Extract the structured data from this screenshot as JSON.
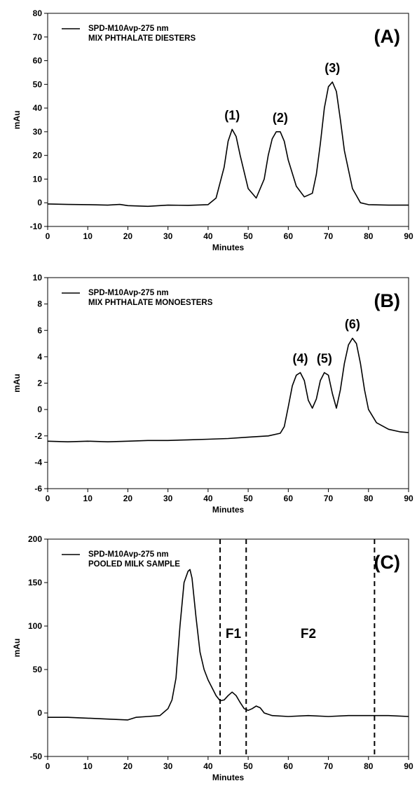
{
  "chart_data": [
    {
      "type": "line",
      "panel_label": "(A)",
      "legend": [
        "SPD-M10Avp-275 nm",
        "MIX PHTHALATE DIESTERS"
      ],
      "xlabel": "Minutes",
      "ylabel": "mAu",
      "xlim": [
        0,
        90
      ],
      "ylim": [
        -10,
        80
      ],
      "x_ticks": [
        0,
        10,
        20,
        30,
        40,
        50,
        60,
        70,
        80,
        90
      ],
      "y_ticks": [
        -10,
        0,
        10,
        20,
        30,
        40,
        50,
        60,
        70,
        80
      ],
      "grid": false,
      "legend_position": "top-left",
      "series": [
        {
          "x": [
            0,
            5,
            10,
            15,
            18,
            20,
            25,
            30,
            35,
            40,
            42,
            44,
            45,
            46,
            47,
            48,
            50,
            52,
            54,
            55,
            56,
            57,
            58,
            59,
            60,
            62,
            64,
            66,
            67,
            68,
            69,
            70,
            71,
            72,
            73,
            74,
            76,
            78,
            80,
            85,
            90
          ],
          "y": [
            -0.5,
            -0.7,
            -0.8,
            -1.0,
            -0.7,
            -1.2,
            -1.5,
            -1.0,
            -1.1,
            -0.8,
            2,
            15,
            26,
            31,
            28,
            20,
            6,
            2,
            10,
            20,
            27,
            30,
            30,
            26,
            18,
            7,
            2.5,
            4,
            12,
            25,
            40,
            49,
            51,
            47,
            35,
            22,
            6,
            0,
            -0.8,
            -1.0,
            -1.0
          ]
        }
      ],
      "peak_labels": [
        {
          "text": "(1)",
          "x": 46,
          "y": 31
        },
        {
          "text": "(2)",
          "x": 58,
          "y": 30
        },
        {
          "text": "(3)",
          "x": 71,
          "y": 51
        }
      ]
    },
    {
      "type": "line",
      "panel_label": "(B)",
      "legend": [
        "SPD-M10Avp-275 nm",
        "MIX PHTHALATE MONOESTERS"
      ],
      "xlabel": "Minutes",
      "ylabel": "mAu",
      "xlim": [
        0,
        90
      ],
      "ylim": [
        -6,
        10
      ],
      "x_ticks": [
        0,
        10,
        20,
        30,
        40,
        50,
        60,
        70,
        80,
        90
      ],
      "y_ticks": [
        -6,
        -4,
        -2,
        0,
        2,
        4,
        6,
        8,
        10
      ],
      "grid": false,
      "legend_position": "top-left",
      "series": [
        {
          "x": [
            0,
            5,
            10,
            15,
            20,
            25,
            30,
            35,
            40,
            45,
            50,
            55,
            58,
            59,
            60,
            61,
            62,
            63,
            64,
            65,
            66,
            67,
            68,
            69,
            70,
            71,
            72,
            73,
            74,
            75,
            76,
            77,
            78,
            79,
            80,
            82,
            85,
            88,
            90
          ],
          "y": [
            -2.4,
            -2.45,
            -2.4,
            -2.45,
            -2.4,
            -2.35,
            -2.35,
            -2.3,
            -2.25,
            -2.2,
            -2.1,
            -2.0,
            -1.8,
            -1.3,
            0.2,
            1.8,
            2.6,
            2.8,
            2.2,
            0.7,
            0.1,
            0.8,
            2.2,
            2.8,
            2.6,
            1.2,
            0.1,
            1.5,
            3.5,
            4.9,
            5.4,
            5.0,
            3.5,
            1.5,
            0.0,
            -1.0,
            -1.5,
            -1.7,
            -1.75
          ]
        }
      ],
      "peak_labels": [
        {
          "text": "(4)",
          "x": 63,
          "y": 2.8
        },
        {
          "text": "(5)",
          "x": 69,
          "y": 2.8
        },
        {
          "text": "(6)",
          "x": 76,
          "y": 5.4
        }
      ]
    },
    {
      "type": "line",
      "panel_label": "(C)",
      "legend": [
        "SPD-M10Avp-275 nm",
        "POOLED MILK SAMPLE"
      ],
      "xlabel": "Minutes",
      "ylabel": "mAu",
      "xlim": [
        0,
        90
      ],
      "ylim": [
        -50,
        200
      ],
      "x_ticks": [
        0,
        10,
        20,
        30,
        40,
        50,
        60,
        70,
        80,
        90
      ],
      "y_ticks": [
        -50,
        0,
        50,
        100,
        150,
        200
      ],
      "grid": false,
      "legend_position": "top-left",
      "series": [
        {
          "x": [
            0,
            5,
            10,
            15,
            20,
            22,
            25,
            28,
            30,
            31,
            32,
            33,
            34,
            35,
            35.5,
            36,
            37,
            38,
            39,
            40,
            42,
            43,
            44,
            45,
            46,
            47,
            48,
            49,
            50,
            51,
            52,
            53,
            54,
            56,
            60,
            65,
            70,
            75,
            80,
            85,
            90
          ],
          "y": [
            -5,
            -5,
            -6,
            -7,
            -8,
            -5,
            -4,
            -3,
            5,
            15,
            40,
            100,
            150,
            163,
            165,
            155,
            110,
            70,
            50,
            38,
            20,
            14,
            15,
            20,
            24,
            20,
            12,
            5,
            3,
            5,
            8,
            6,
            0,
            -3,
            -4,
            -3,
            -4,
            -3,
            -3,
            -3,
            -4
          ]
        }
      ],
      "region_markers": [
        {
          "type": "dashed-vertical",
          "x": 43
        },
        {
          "type": "dashed-vertical",
          "x": 49.5
        },
        {
          "type": "dashed-vertical",
          "x": 81.5
        }
      ],
      "regions": [
        {
          "text": "F1",
          "x": 46.3,
          "y": 92
        },
        {
          "text": "F2",
          "x": 65,
          "y": 92
        }
      ]
    }
  ]
}
